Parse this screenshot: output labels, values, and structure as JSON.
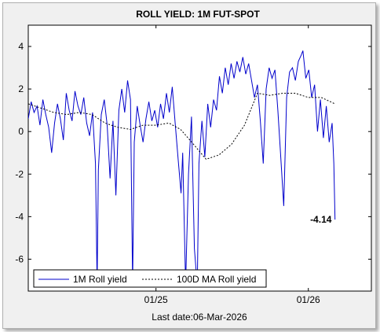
{
  "chart_data": {
    "type": "line",
    "title": "ROLL YIELD: 1M FUT-SPOT",
    "xlabel": "Last date:06-Mar-2026",
    "ylabel": "",
    "x_range": [
      "2024-03-01",
      "2026-06-01"
    ],
    "ylim": [
      -7.5,
      5
    ],
    "y_ticks": [
      4,
      2,
      0,
      -2,
      -4,
      -6
    ],
    "x_ticks": [
      {
        "date": "2025-01-01",
        "label": "01/25"
      },
      {
        "date": "2026-01-01",
        "label": "01/26"
      }
    ],
    "grid": false,
    "legend_position": "bottom-left",
    "annotation": {
      "text": "-4.14",
      "date": "2026-03-06",
      "value": -4.14
    },
    "series": [
      {
        "name": "1M Roll yield",
        "color": "#0000cc",
        "style": "solid",
        "points": [
          [
            "2024-03-01",
            0.6
          ],
          [
            "2024-03-08",
            1.4
          ],
          [
            "2024-03-15",
            0.9
          ],
          [
            "2024-03-22",
            1.2
          ],
          [
            "2024-03-29",
            0.3
          ],
          [
            "2024-04-05",
            1.5
          ],
          [
            "2024-04-12",
            0.8
          ],
          [
            "2024-04-19",
            0.2
          ],
          [
            "2024-04-26",
            -1.0
          ],
          [
            "2024-05-03",
            0.4
          ],
          [
            "2024-05-10",
            1.3
          ],
          [
            "2024-05-17",
            0.6
          ],
          [
            "2024-05-24",
            -0.4
          ],
          [
            "2024-05-31",
            1.8
          ],
          [
            "2024-06-07",
            1.0
          ],
          [
            "2024-06-14",
            0.5
          ],
          [
            "2024-06-21",
            1.9
          ],
          [
            "2024-06-28",
            1.2
          ],
          [
            "2024-07-05",
            0.8
          ],
          [
            "2024-07-12",
            1.6
          ],
          [
            "2024-07-19",
            0.4
          ],
          [
            "2024-07-26",
            -0.2
          ],
          [
            "2024-08-02",
            0.9
          ],
          [
            "2024-08-09",
            -1.5
          ],
          [
            "2024-08-13",
            -7.2
          ],
          [
            "2024-08-16",
            -1.8
          ],
          [
            "2024-08-23",
            0.8
          ],
          [
            "2024-08-30",
            1.5
          ],
          [
            "2024-09-06",
            0.3
          ],
          [
            "2024-09-13",
            -2.2
          ],
          [
            "2024-09-20",
            0.5
          ],
          [
            "2024-09-27",
            -3.0
          ],
          [
            "2024-10-04",
            1.0
          ],
          [
            "2024-10-11",
            2.0
          ],
          [
            "2024-10-18",
            0.9
          ],
          [
            "2024-10-25",
            2.4
          ],
          [
            "2024-11-01",
            1.5
          ],
          [
            "2024-11-06",
            -7.2
          ],
          [
            "2024-11-10",
            -0.5
          ],
          [
            "2024-11-17",
            1.2
          ],
          [
            "2024-11-24",
            0.3
          ],
          [
            "2024-12-01",
            -0.5
          ],
          [
            "2024-12-08",
            0.6
          ],
          [
            "2024-12-15",
            1.4
          ],
          [
            "2024-12-22",
            0.5
          ],
          [
            "2024-12-29",
            1.0
          ],
          [
            "2025-01-05",
            0.2
          ],
          [
            "2025-01-12",
            1.3
          ],
          [
            "2025-01-19",
            0.6
          ],
          [
            "2025-01-26",
            1.8
          ],
          [
            "2025-02-02",
            0.9
          ],
          [
            "2025-02-09",
            2.1
          ],
          [
            "2025-02-16",
            0.4
          ],
          [
            "2025-02-23",
            -1.3
          ],
          [
            "2025-03-02",
            -2.9
          ],
          [
            "2025-03-06",
            -1.0
          ],
          [
            "2025-03-13",
            -7.2
          ],
          [
            "2025-03-20",
            -2.0
          ],
          [
            "2025-03-27",
            0.7
          ],
          [
            "2025-04-03",
            -5.5
          ],
          [
            "2025-04-07",
            -6.5
          ],
          [
            "2025-04-10",
            -7.2
          ],
          [
            "2025-04-14",
            -1.5
          ],
          [
            "2025-04-21",
            0.5
          ],
          [
            "2025-04-28",
            -1.2
          ],
          [
            "2025-05-05",
            1.3
          ],
          [
            "2025-05-12",
            0.2
          ],
          [
            "2025-05-19",
            1.5
          ],
          [
            "2025-05-26",
            1.0
          ],
          [
            "2025-06-02",
            2.6
          ],
          [
            "2025-06-09",
            1.8
          ],
          [
            "2025-06-16",
            3.0
          ],
          [
            "2025-06-23",
            2.2
          ],
          [
            "2025-06-30",
            3.2
          ],
          [
            "2025-07-07",
            2.5
          ],
          [
            "2025-07-14",
            3.3
          ],
          [
            "2025-07-21",
            2.8
          ],
          [
            "2025-07-28",
            3.5
          ],
          [
            "2025-08-04",
            2.7
          ],
          [
            "2025-08-11",
            3.2
          ],
          [
            "2025-08-18",
            2.4
          ],
          [
            "2025-08-25",
            1.6
          ],
          [
            "2025-09-01",
            2.2
          ],
          [
            "2025-09-08",
            0.5
          ],
          [
            "2025-09-15",
            -1.5
          ],
          [
            "2025-09-22",
            2.0
          ],
          [
            "2025-09-29",
            3.0
          ],
          [
            "2025-10-06",
            2.5
          ],
          [
            "2025-10-13",
            2.9
          ],
          [
            "2025-10-20",
            1.0
          ],
          [
            "2025-10-27",
            -1.2
          ],
          [
            "2025-11-03",
            -3.5
          ],
          [
            "2025-11-10",
            1.6
          ],
          [
            "2025-11-17",
            2.8
          ],
          [
            "2025-11-24",
            3.0
          ],
          [
            "2025-12-01",
            2.4
          ],
          [
            "2025-12-08",
            3.3
          ],
          [
            "2025-12-15",
            3.6
          ],
          [
            "2025-12-19",
            3.8
          ],
          [
            "2025-12-26",
            2.5
          ],
          [
            "2026-01-02",
            2.9
          ],
          [
            "2026-01-09",
            1.6
          ],
          [
            "2026-01-16",
            2.2
          ],
          [
            "2026-01-23",
            0.0
          ],
          [
            "2026-01-30",
            1.5
          ],
          [
            "2026-02-06",
            -0.3
          ],
          [
            "2026-02-13",
            1.2
          ],
          [
            "2026-02-20",
            -0.5
          ],
          [
            "2026-02-27",
            0.4
          ],
          [
            "2026-03-03",
            -1.5
          ],
          [
            "2026-03-06",
            -4.14
          ]
        ]
      },
      {
        "name": "100D MA Roll yield",
        "color": "#000000",
        "style": "dashed",
        "points": [
          [
            "2024-03-01",
            1.3
          ],
          [
            "2024-04-01",
            1.1
          ],
          [
            "2024-05-01",
            0.9
          ],
          [
            "2024-06-01",
            0.8
          ],
          [
            "2024-07-01",
            0.9
          ],
          [
            "2024-08-01",
            0.8
          ],
          [
            "2024-09-01",
            0.4
          ],
          [
            "2024-10-01",
            0.2
          ],
          [
            "2024-11-01",
            0.1
          ],
          [
            "2024-12-01",
            0.3
          ],
          [
            "2025-01-01",
            0.3
          ],
          [
            "2025-02-01",
            0.4
          ],
          [
            "2025-03-01",
            0.1
          ],
          [
            "2025-04-01",
            -0.6
          ],
          [
            "2025-05-01",
            -1.3
          ],
          [
            "2025-06-01",
            -1.1
          ],
          [
            "2025-07-01",
            -0.6
          ],
          [
            "2025-08-01",
            0.3
          ],
          [
            "2025-09-01",
            1.8
          ],
          [
            "2025-10-01",
            1.7
          ],
          [
            "2025-11-01",
            1.8
          ],
          [
            "2025-12-01",
            1.8
          ],
          [
            "2026-01-01",
            1.6
          ],
          [
            "2026-02-01",
            1.6
          ],
          [
            "2026-03-06",
            1.3
          ]
        ]
      }
    ]
  }
}
